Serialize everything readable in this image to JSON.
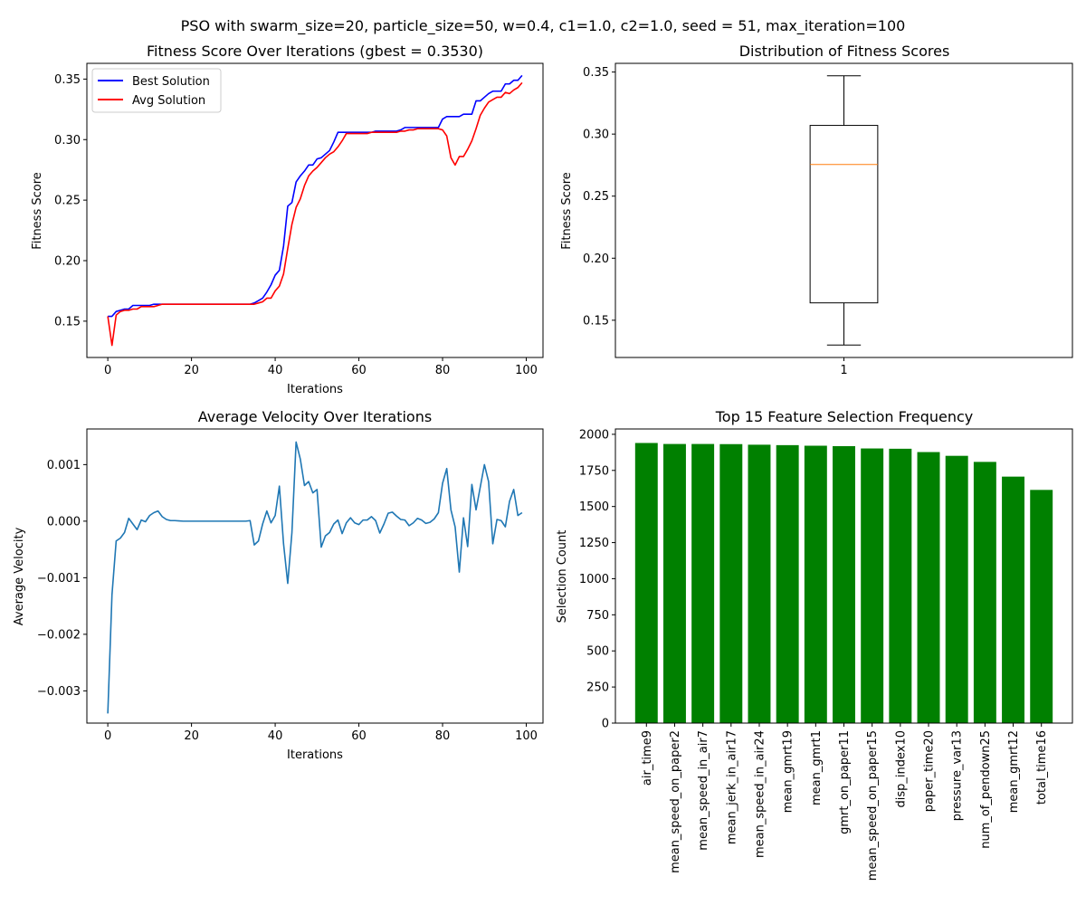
{
  "figure": {
    "suptitle": "PSO with swarm_size=20, particle_size=50, w=0.4, c1=1.0, c2=1.0, seed = 51, max_iteration=100"
  },
  "chart_data": [
    {
      "id": "fitness",
      "type": "line",
      "title": "Fitness Score Over Iterations (gbest = 0.3530)",
      "xlabel": "Iterations",
      "ylabel": "Fitness Score",
      "xlim": [
        -5,
        104
      ],
      "ylim": [
        0.12,
        0.363
      ],
      "xticks": [
        0,
        20,
        40,
        60,
        80,
        100
      ],
      "yticks": [
        0.15,
        0.2,
        0.25,
        0.3,
        0.35
      ],
      "yticklabels": [
        "0.15",
        "0.20",
        "0.25",
        "0.30",
        "0.35"
      ],
      "legend": "upper-left",
      "series": [
        {
          "name": "Best Solution",
          "color": "#0000ff",
          "y": [
            0.154,
            0.154,
            0.158,
            0.159,
            0.16,
            0.16,
            0.163,
            0.163,
            0.163,
            0.163,
            0.163,
            0.164,
            0.164,
            0.164,
            0.164,
            0.164,
            0.164,
            0.164,
            0.164,
            0.164,
            0.164,
            0.164,
            0.164,
            0.164,
            0.164,
            0.164,
            0.164,
            0.164,
            0.164,
            0.164,
            0.164,
            0.164,
            0.164,
            0.164,
            0.164,
            0.165,
            0.167,
            0.169,
            0.174,
            0.18,
            0.188,
            0.192,
            0.212,
            0.245,
            0.248,
            0.265,
            0.27,
            0.274,
            0.279,
            0.279,
            0.284,
            0.285,
            0.288,
            0.291,
            0.298,
            0.306,
            0.306,
            0.306,
            0.306,
            0.306,
            0.306,
            0.306,
            0.306,
            0.306,
            0.307,
            0.307,
            0.307,
            0.307,
            0.307,
            0.307,
            0.308,
            0.31,
            0.31,
            0.31,
            0.31,
            0.31,
            0.31,
            0.31,
            0.31,
            0.31,
            0.317,
            0.319,
            0.319,
            0.319,
            0.319,
            0.321,
            0.321,
            0.321,
            0.332,
            0.332,
            0.335,
            0.338,
            0.34,
            0.34,
            0.34,
            0.346,
            0.346,
            0.349,
            0.349,
            0.353
          ]
        },
        {
          "name": "Avg Solution",
          "color": "#ff0000",
          "y": [
            0.154,
            0.13,
            0.155,
            0.158,
            0.159,
            0.159,
            0.16,
            0.16,
            0.162,
            0.162,
            0.162,
            0.162,
            0.163,
            0.164,
            0.164,
            0.164,
            0.164,
            0.164,
            0.164,
            0.164,
            0.164,
            0.164,
            0.164,
            0.164,
            0.164,
            0.164,
            0.164,
            0.164,
            0.164,
            0.164,
            0.164,
            0.164,
            0.164,
            0.164,
            0.164,
            0.164,
            0.165,
            0.166,
            0.169,
            0.169,
            0.175,
            0.179,
            0.189,
            0.21,
            0.23,
            0.244,
            0.251,
            0.262,
            0.27,
            0.274,
            0.277,
            0.281,
            0.285,
            0.288,
            0.29,
            0.294,
            0.299,
            0.305,
            0.305,
            0.305,
            0.305,
            0.305,
            0.305,
            0.306,
            0.306,
            0.306,
            0.306,
            0.306,
            0.306,
            0.306,
            0.307,
            0.307,
            0.308,
            0.308,
            0.309,
            0.309,
            0.309,
            0.309,
            0.309,
            0.309,
            0.308,
            0.303,
            0.285,
            0.279,
            0.286,
            0.286,
            0.292,
            0.299,
            0.309,
            0.32,
            0.326,
            0.331,
            0.333,
            0.335,
            0.335,
            0.339,
            0.338,
            0.341,
            0.343,
            0.347
          ]
        }
      ]
    },
    {
      "id": "distribution",
      "type": "box",
      "title": "Distribution of Fitness Scores",
      "ylabel": "Fitness Score",
      "xticklabels": [
        "1"
      ],
      "ylim": [
        0.12,
        0.357
      ],
      "yticks": [
        0.15,
        0.2,
        0.25,
        0.3,
        0.35
      ],
      "yticklabels": [
        "0.15",
        "0.20",
        "0.25",
        "0.30",
        "0.35"
      ],
      "box": {
        "whisker_low": 0.13,
        "q1": 0.164,
        "median": 0.2755,
        "q3": 0.307,
        "whisker_high": 0.347
      },
      "median_color": "#ff7f0e"
    },
    {
      "id": "velocity",
      "type": "line",
      "title": "Average Velocity Over Iterations",
      "xlabel": "Iterations",
      "ylabel": "Average Velocity",
      "xlim": [
        -5,
        104
      ],
      "ylim": [
        -0.00357,
        0.00163
      ],
      "xticks": [
        0,
        20,
        40,
        60,
        80,
        100
      ],
      "yticks": [
        -0.003,
        -0.002,
        -0.001,
        0.0,
        0.001
      ],
      "yticklabels": [
        "−0.003",
        "−0.002",
        "−0.001",
        "0.000",
        "0.001"
      ],
      "series": [
        {
          "color": "#1f77b4",
          "y": [
            -0.0034,
            -0.0013,
            -0.00035,
            -0.0003,
            -0.0002,
            5e-05,
            -5e-05,
            -0.00015,
            2e-05,
            -1e-05,
            0.0001,
            0.00015,
            0.00018,
            8e-05,
            3e-05,
            1e-05,
            1e-05,
            5e-06,
            0.0,
            0.0,
            0.0,
            0.0,
            0.0,
            0.0,
            0.0,
            0.0,
            0.0,
            0.0,
            0.0,
            0.0,
            0.0,
            0.0,
            0.0,
            0.0,
            1e-05,
            -0.00042,
            -0.00035,
            -5e-05,
            0.00018,
            -3e-05,
            0.0001,
            0.00062,
            -0.0004,
            -0.0011,
            -0.0002,
            0.0014,
            0.0011,
            0.00063,
            0.0007,
            0.0005,
            0.00056,
            -0.00046,
            -0.00026,
            -0.0002,
            -5e-05,
            2e-05,
            -0.00022,
            -3e-05,
            6e-05,
            -3e-05,
            -6e-05,
            2e-05,
            2e-05,
            8e-05,
            1e-05,
            -0.00021,
            -5e-05,
            0.00014,
            0.00016,
            9e-05,
            3e-05,
            2e-05,
            -8e-05,
            -3e-05,
            5e-05,
            2e-05,
            -4e-05,
            -2e-05,
            4e-05,
            0.00015,
            0.00067,
            0.00093,
            0.0002,
            -0.0001,
            -0.0009,
            6e-05,
            -0.00045,
            0.00065,
            0.0002,
            0.0006,
            0.001,
            0.0007,
            -0.0004,
            3e-05,
            1e-05,
            -0.0001,
            0.00035,
            0.00056,
            0.0001,
            0.00015
          ]
        }
      ]
    },
    {
      "id": "features",
      "type": "bar",
      "title": "Top 15 Feature Selection Frequency",
      "ylabel": "Selection Count",
      "ylim": [
        0,
        2037
      ],
      "yticks": [
        0,
        250,
        500,
        750,
        1000,
        1250,
        1500,
        1750,
        2000
      ],
      "bar_color": "#008000",
      "categories": [
        "air_time9",
        "mean_speed_on_paper2",
        "mean_speed_in_air7",
        "mean_jerk_in_air17",
        "mean_speed_in_air24",
        "mean_gmrt19",
        "mean_gmrt1",
        "gmrt_on_paper11",
        "mean_speed_on_paper15",
        "disp_index10",
        "paper_time20",
        "pressure_var13",
        "num_of_pendown25",
        "mean_gmrt12",
        "total_time16"
      ],
      "values": [
        1940,
        1933,
        1933,
        1932,
        1928,
        1925,
        1921,
        1918,
        1902,
        1900,
        1877,
        1851,
        1809,
        1707,
        1615
      ]
    }
  ]
}
